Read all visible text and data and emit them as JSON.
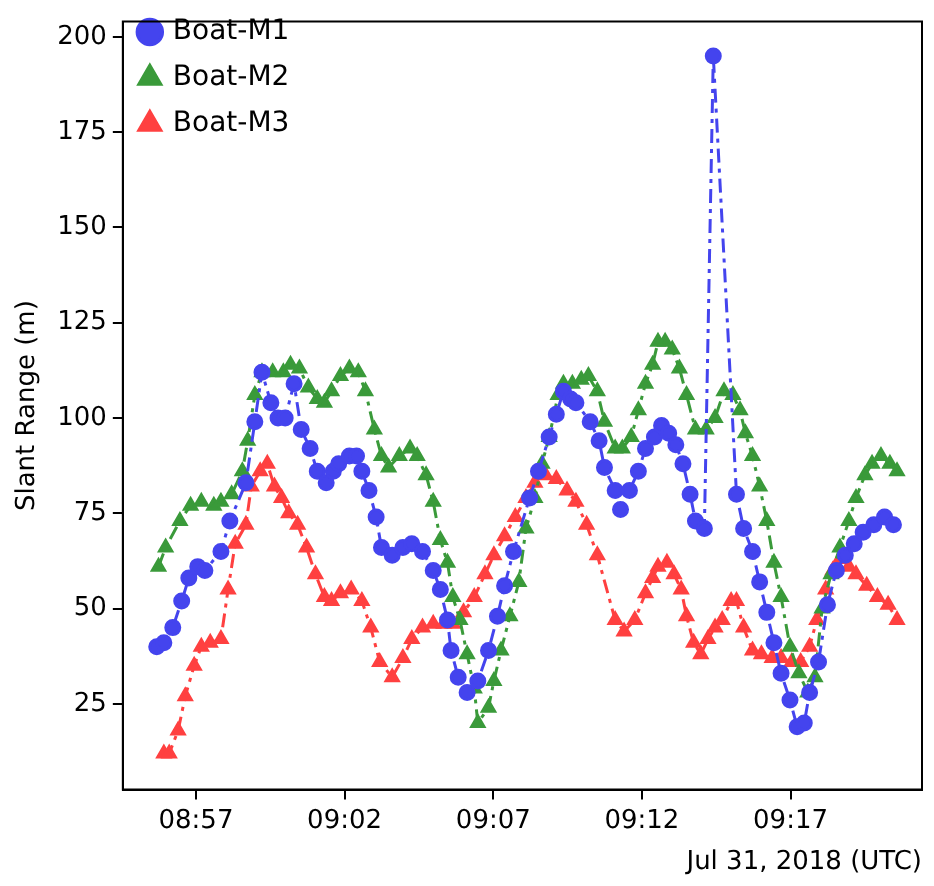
{
  "chart_data": {
    "type": "line",
    "xlabel": "Jul 31, 2018 (UTC)",
    "ylabel": "Slant Range (m)",
    "xlim": [
      8.909,
      9.357
    ],
    "ylim": [
      2.5,
      204
    ],
    "xticks": [
      {
        "value": 8.95,
        "label": "08:57"
      },
      {
        "value": 9.0333,
        "label": "09:02"
      },
      {
        "value": 9.1167,
        "label": "09:07"
      },
      {
        "value": 9.2,
        "label": "09:12"
      },
      {
        "value": 9.2833,
        "label": "09:17"
      }
    ],
    "yticks": [
      25,
      50,
      75,
      100,
      125,
      150,
      175,
      200
    ],
    "grid": false,
    "legend": "top left",
    "line_style": "dashed",
    "series": [
      {
        "name": "Boat-M1",
        "color": "#4444ee",
        "marker": "circle",
        "x": [
          8.928,
          8.932,
          8.937,
          8.942,
          8.946,
          8.951,
          8.955,
          8.964,
          8.969,
          8.978,
          8.983,
          8.987,
          8.992,
          8.996,
          9.0,
          9.005,
          9.009,
          9.014,
          9.018,
          9.023,
          9.027,
          9.03,
          9.036,
          9.04,
          9.043,
          9.047,
          9.051,
          9.054,
          9.06,
          9.066,
          9.071,
          9.077,
          9.083,
          9.087,
          9.091,
          9.093,
          9.097,
          9.102,
          9.108,
          9.114,
          9.119,
          9.123,
          9.128,
          9.137,
          9.142,
          9.148,
          9.152,
          9.156,
          9.16,
          9.163,
          9.171,
          9.176,
          9.179,
          9.185,
          9.188,
          9.193,
          9.198,
          9.202,
          9.207,
          9.211,
          9.215,
          9.219,
          9.223,
          9.227,
          9.23,
          9.235,
          9.24,
          9.253,
          9.257,
          9.262,
          9.266,
          9.27,
          9.274,
          9.278,
          9.283,
          9.287,
          9.291,
          9.294,
          9.299,
          9.304,
          9.309,
          9.314,
          9.319,
          9.324,
          9.33,
          9.336,
          9.341
        ],
        "values": [
          40,
          41,
          45,
          52,
          58,
          61,
          60,
          65,
          73,
          83,
          99,
          112,
          104,
          100,
          100,
          109,
          97,
          92,
          86,
          83,
          86,
          88,
          90,
          90,
          86,
          81,
          74,
          66,
          64,
          66,
          67,
          65,
          60,
          55,
          47,
          39,
          32,
          28,
          31,
          39,
          48,
          56,
          65,
          79,
          86,
          95,
          101,
          107,
          105,
          104,
          99,
          94,
          87,
          81,
          76,
          81,
          86,
          92,
          95,
          98,
          96,
          93,
          88,
          80,
          73,
          71,
          195,
          80,
          71,
          65,
          57,
          49,
          41,
          33,
          26,
          19,
          20,
          28,
          36,
          51,
          60,
          64,
          67,
          70,
          72,
          74,
          72
        ]
      },
      {
        "name": "Boat-M2",
        "color": "#3a9a3a",
        "marker": "triangle",
        "x": [
          8.929,
          8.933,
          8.941,
          8.947,
          8.953,
          8.96,
          8.964,
          8.97,
          8.976,
          8.979,
          8.983,
          8.987,
          8.993,
          8.999,
          9.003,
          9.008,
          9.013,
          9.018,
          9.022,
          9.026,
          9.031,
          9.036,
          9.041,
          9.045,
          9.05,
          9.054,
          9.058,
          9.064,
          9.07,
          9.074,
          9.079,
          9.083,
          9.087,
          9.091,
          9.094,
          9.098,
          9.102,
          9.106,
          9.108,
          9.114,
          9.117,
          9.121,
          9.126,
          9.131,
          9.135,
          9.14,
          9.144,
          9.148,
          9.153,
          9.156,
          9.161,
          9.166,
          9.17,
          9.175,
          9.179,
          9.185,
          9.189,
          9.194,
          9.198,
          9.202,
          9.206,
          9.209,
          9.213,
          9.217,
          9.221,
          9.225,
          9.23,
          9.236,
          9.241,
          9.246,
          9.251,
          9.255,
          9.258,
          9.262,
          9.266,
          9.27,
          9.274,
          9.278,
          9.283,
          9.288,
          9.293,
          9.297,
          9.301,
          9.306,
          9.311,
          9.316,
          9.32,
          9.325,
          9.329,
          9.334,
          9.339,
          9.343
        ],
        "values": [
          61,
          66,
          73,
          77,
          78,
          77,
          78,
          80,
          86,
          94,
          106,
          112,
          112,
          112,
          114,
          113,
          108,
          105,
          104,
          107,
          111,
          113,
          112,
          107,
          97,
          90,
          87,
          90,
          92,
          90,
          85,
          78,
          68,
          62,
          53,
          47,
          38,
          29,
          20,
          24,
          31,
          39,
          48,
          57,
          71,
          79,
          88,
          95,
          106,
          109,
          109,
          110,
          111,
          107,
          99,
          92,
          92,
          95,
          102,
          109,
          114,
          120,
          120,
          118,
          113,
          106,
          97,
          97,
          100,
          107,
          106,
          102,
          96,
          90,
          82,
          73,
          62,
          53,
          40,
          33,
          28,
          32,
          50,
          59,
          66,
          73,
          79,
          85,
          88,
          90,
          88,
          86
        ]
      },
      {
        "name": "Boat-M3",
        "color": "#ff4040",
        "marker": "triangle",
        "x": [
          8.932,
          8.935,
          8.94,
          8.944,
          8.949,
          8.953,
          8.958,
          8.964,
          8.968,
          8.972,
          8.978,
          8.981,
          8.986,
          8.99,
          8.994,
          8.998,
          9.002,
          9.007,
          9.012,
          9.017,
          9.022,
          9.026,
          9.031,
          9.037,
          9.043,
          9.048,
          9.053,
          9.06,
          9.066,
          9.071,
          9.077,
          9.083,
          9.089,
          9.094,
          9.1,
          9.106,
          9.112,
          9.117,
          9.123,
          9.129,
          9.135,
          9.14,
          9.146,
          9.152,
          9.158,
          9.163,
          9.169,
          9.175,
          9.185,
          9.19,
          9.196,
          9.202,
          9.206,
          9.209,
          9.214,
          9.218,
          9.222,
          9.225,
          9.229,
          9.233,
          9.237,
          9.241,
          9.245,
          9.25,
          9.253,
          9.257,
          9.262,
          9.267,
          9.273,
          9.278,
          9.284,
          9.289,
          9.294,
          9.298,
          9.303,
          9.307,
          9.311,
          9.316,
          9.32,
          9.326,
          9.332,
          9.338,
          9.343
        ],
        "values": [
          12,
          12,
          18,
          27,
          35,
          40,
          41,
          42,
          55,
          67,
          72,
          82,
          86,
          88,
          82,
          79,
          75,
          72,
          66,
          59,
          53,
          52,
          54,
          55,
          52,
          45,
          36,
          32,
          37,
          42,
          45,
          46,
          46,
          46,
          49,
          53,
          59,
          64,
          69,
          74,
          79,
          83,
          85,
          84,
          81,
          78,
          72,
          64,
          47,
          44,
          47,
          54,
          58,
          61,
          62,
          59,
          55,
          48,
          41,
          38,
          42,
          45,
          47,
          52,
          52,
          45,
          39,
          38,
          37,
          37,
          36,
          36,
          40,
          47,
          55,
          60,
          63,
          61,
          59,
          56,
          53,
          51,
          47
        ]
      }
    ]
  }
}
